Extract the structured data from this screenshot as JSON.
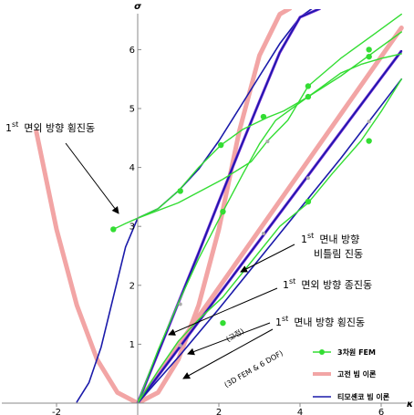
{
  "chart_data": {
    "type": "line",
    "xlabel": "κ",
    "ylabel": "σ",
    "xlim": [
      -2.5,
      6.5
    ],
    "ylim": [
      0,
      6.7
    ],
    "x_ticks": [
      -2,
      2,
      4,
      6
    ],
    "y_ticks": [
      1,
      2,
      3,
      4,
      5,
      6
    ],
    "grid": false,
    "legend_position": "bottom-right",
    "series": [
      {
        "name": "3차원 FEM",
        "color": "#33dd33",
        "markers": true,
        "curves": [
          {
            "x": [
              -0.6,
              -0.3,
              0,
              0.5,
              1.0,
              1.5,
              2.05,
              2.6,
              3.2,
              3.6,
              4.2,
              5.0,
              5.7,
              6.5
            ],
            "y": [
              2.95,
              3.05,
              3.14,
              3.3,
              3.6,
              4.0,
              4.38,
              4.65,
              4.85,
              4.96,
              5.2,
              5.55,
              5.9,
              6.3
            ]
          },
          {
            "x": [
              0,
              1.0,
              2.1,
              2.8,
              3.2,
              3.7,
              4.2,
              5.0,
              5.8,
              6.5
            ],
            "y": [
              3.14,
              3.4,
              3.8,
              4.1,
              4.45,
              4.8,
              5.38,
              5.85,
              6.25,
              6.6
            ]
          },
          {
            "x": [
              0,
              0.5,
              1.0,
              1.5,
              2.1,
              2.6,
              3.0,
              3.4,
              4.0,
              4.5,
              5.0,
              5.5,
              6.0,
              6.5
            ],
            "y": [
              0,
              0.9,
              1.7,
              2.45,
              3.25,
              3.9,
              4.4,
              4.8,
              5.1,
              5.35,
              5.6,
              5.75,
              5.85,
              5.93
            ]
          },
          {
            "x": [
              0,
              0.5,
              1.0,
              1.5,
              2.1,
              2.8,
              3.5,
              4.2,
              4.8,
              5.5,
              6.0,
              6.5
            ],
            "y": [
              0,
              0.55,
              1.05,
              1.42,
              1.8,
              2.4,
              3.0,
              3.4,
              3.9,
              4.45,
              4.95,
              5.5
            ]
          }
        ],
        "points": [
          {
            "x": -0.6,
            "y": 2.95
          },
          {
            "x": 1.05,
            "y": 3.6
          },
          {
            "x": 2.05,
            "y": 4.38
          },
          {
            "x": 3.1,
            "y": 4.86
          },
          {
            "x": 4.2,
            "y": 5.38
          },
          {
            "x": 4.2,
            "y": 5.2
          },
          {
            "x": 5.7,
            "y": 6.0
          },
          {
            "x": 5.7,
            "y": 5.88
          },
          {
            "x": 2.1,
            "y": 3.25
          },
          {
            "x": 4.2,
            "y": 3.42
          },
          {
            "x": 5.7,
            "y": 4.45
          },
          {
            "x": 2.1,
            "y": 1.36
          }
        ],
        "small_points": [
          {
            "x": 1.05,
            "y": 1.68
          },
          {
            "x": 1.05,
            "y": 0.98
          },
          {
            "x": 3.2,
            "y": 4.44
          },
          {
            "x": 3.1,
            "y": 2.88
          },
          {
            "x": 4.2,
            "y": 3.82
          },
          {
            "x": 5.7,
            "y": 4.78
          }
        ]
      },
      {
        "name": "고전 빔 이론",
        "color": "#f2a5a5",
        "curves": [
          {
            "x": [
              -2.5,
              -2.0,
              -1.5,
              -1.0,
              -0.5,
              0,
              0.5,
              1.0,
              1.5,
              2.0,
              2.5,
              3.0,
              3.5,
              3.75
            ],
            "y": [
              4.61,
              2.95,
              1.66,
              0.74,
              0.18,
              0,
              0.18,
              0.74,
              1.66,
              2.95,
              4.61,
              5.9,
              6.6,
              6.7
            ]
          },
          {
            "x": [
              0,
              1,
              2,
              3,
              4,
              5,
              6,
              6.5
            ],
            "y": [
              0,
              0.98,
              1.96,
              2.94,
              3.92,
              4.9,
              5.88,
              6.37
            ]
          }
        ]
      },
      {
        "name": "티모셴코 빔 이론",
        "color": "#1a1aaa",
        "curves": [
          {
            "x": [
              -1.5,
              -1.2,
              -0.9,
              -0.6,
              -0.3,
              0,
              0.5,
              1.0,
              1.5,
              2.0,
              2.5,
              3.0,
              3.5,
              4.0,
              4.3
            ],
            "y": [
              0.02,
              0.35,
              0.95,
              1.8,
              2.65,
              3.14,
              3.3,
              3.6,
              3.97,
              4.45,
              5.0,
              5.55,
              6.1,
              6.55,
              6.7
            ]
          },
          {
            "x": [
              0,
              0.5,
              1.0,
              1.5,
              2.0,
              2.5,
              3.0,
              3.5,
              4.0,
              4.5
            ],
            "y": [
              0,
              0.85,
              1.7,
              2.55,
              3.42,
              4.28,
              5.12,
              5.95,
              6.55,
              6.7
            ]
          },
          {
            "x": [
              0,
              1,
              2,
              3,
              4,
              5,
              6,
              6.5
            ],
            "y": [
              0,
              0.92,
              1.84,
              2.76,
              3.68,
              4.6,
              5.52,
              5.98
            ]
          },
          {
            "x": [
              0,
              1,
              2,
              3,
              4,
              5,
              6,
              6.5
            ],
            "y": [
              0,
              0.78,
              1.6,
              2.45,
              3.3,
              4.15,
              5.05,
              5.5
            ]
          }
        ]
      }
    ],
    "annotations": [
      {
        "id": "a1",
        "sup": "st",
        "text": "면외 방향 횡진동",
        "lead": "1"
      },
      {
        "id": "a2",
        "sup": "st",
        "text": "면내 방향",
        "lead": "1",
        "line2": "비틀림 진동"
      },
      {
        "id": "a3",
        "sup": "st",
        "text": "면외 방향 종진동",
        "lead": "1"
      },
      {
        "id": "a4",
        "sup": "st",
        "text": "면내 방향 횡진동",
        "lead": "1"
      }
    ],
    "rotated_labels": [
      "(고전)",
      "(3D FEM & 6 DOF)"
    ]
  }
}
